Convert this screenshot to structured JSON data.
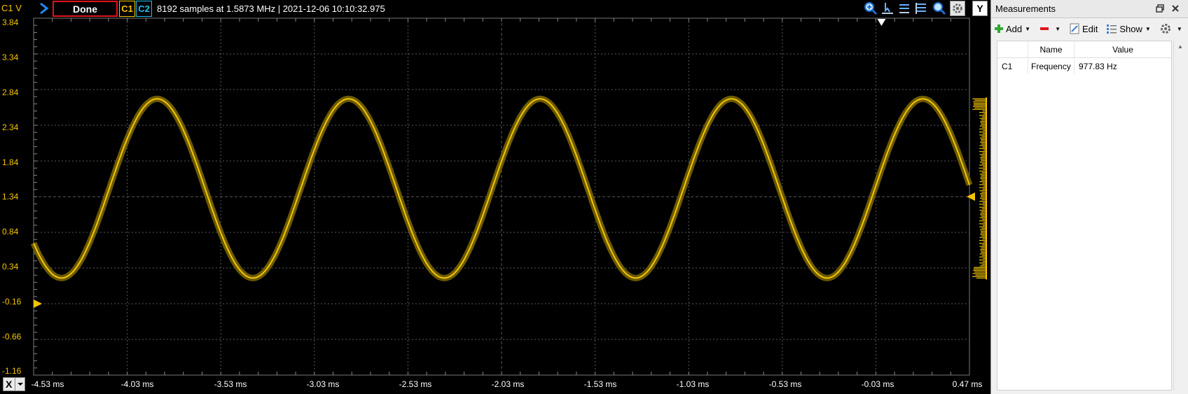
{
  "toolbar": {
    "channel_label": "C1 V",
    "status_button": "Done",
    "c1_button": "C1",
    "c2_button": "C2",
    "acquisition_info": "8192 samples at 1.5873 MHz | 2021-12-06 10:10:32.975",
    "y_button": "Y"
  },
  "x_button": "X",
  "y_ticks": [
    "3.84",
    "3.34",
    "2.84",
    "2.34",
    "1.84",
    "1.34",
    "0.84",
    "0.34",
    "-0.16",
    "-0.66",
    "-1.16"
  ],
  "x_ticks": [
    "-4.53 ms",
    "-4.03 ms",
    "-3.53 ms",
    "-3.03 ms",
    "-2.53 ms",
    "-2.03 ms",
    "-1.53 ms",
    "-1.03 ms",
    "-0.53 ms",
    "-0.03 ms",
    "0.47 ms"
  ],
  "colors": {
    "c1": "#f5c500",
    "c1_shadow": "#6b5a00",
    "c2": "#1ec0f0",
    "done_border": "#e0141d",
    "grid": "#5a5a5a"
  },
  "signal": {
    "channel": "C1",
    "frequency_hz": 977.83,
    "high_v": 2.71,
    "low_v": 0.2,
    "t_start_ms": -4.53,
    "t_end_ms": 0.47,
    "first_peak_ms": -3.87,
    "v_min": -1.16,
    "v_max": 3.84,
    "trigger_level_v": 1.34,
    "offset_marker_v": -0.16
  },
  "measurements": {
    "title": "Measurements",
    "tools": {
      "add": "Add",
      "edit": "Edit",
      "show": "Show"
    },
    "columns": {
      "name": "Name",
      "value": "Value"
    },
    "rows": [
      {
        "channel": "C1",
        "name": "Frequency",
        "value": "977.83 Hz"
      }
    ]
  }
}
